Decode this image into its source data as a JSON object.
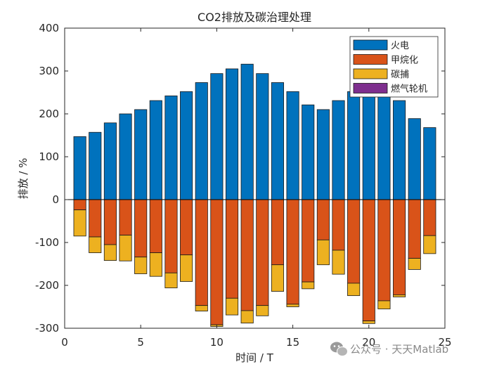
{
  "chart_data": {
    "type": "bar",
    "title": "CO2排放及碳治理处理",
    "xlabel": "时间 / T",
    "ylabel": "排放 / %",
    "xlim": [
      0,
      25
    ],
    "ylim": [
      -300,
      400
    ],
    "xticks": [
      0,
      5,
      10,
      15,
      20,
      25
    ],
    "yticks": [
      -300,
      -200,
      -100,
      0,
      100,
      200,
      300,
      400
    ],
    "x": [
      1,
      2,
      3,
      4,
      5,
      6,
      7,
      8,
      9,
      10,
      11,
      12,
      13,
      14,
      15,
      16,
      17,
      18,
      19,
      20,
      21,
      22,
      23,
      24
    ],
    "series": [
      {
        "name": "火电",
        "color": "#0072BD",
        "values": [
          147,
          157,
          179,
          200,
          210,
          231,
          242,
          252,
          273,
          294,
          305,
          316,
          294,
          273,
          252,
          221,
          210,
          231,
          252,
          252,
          242,
          231,
          189,
          168
        ]
      },
      {
        "name": "甲烷化",
        "color": "#D95319",
        "values": [
          -24,
          -87,
          -105,
          -83,
          -134,
          -124,
          -171,
          -129,
          -247,
          -292,
          -230,
          -259,
          -247,
          -152,
          -244,
          -192,
          -94,
          -118,
          -195,
          -283,
          -236,
          -222,
          -137,
          -84
        ]
      },
      {
        "name": "碳捕",
        "color": "#EDB120",
        "values": [
          -61,
          -37,
          -37,
          -60,
          -39,
          -55,
          -35,
          -62,
          -13,
          -4,
          -39,
          -29,
          -24,
          -62,
          -6,
          -16,
          -58,
          -56,
          -29,
          -6,
          -19,
          -5,
          -26,
          -42
        ]
      },
      {
        "name": "燃气轮机",
        "color": "#7E2F8E",
        "values": [
          0,
          0,
          0,
          0,
          0,
          0,
          0,
          0,
          0,
          0,
          0,
          0,
          0,
          0,
          0,
          0,
          0,
          0,
          0,
          0,
          0,
          0,
          0,
          0
        ]
      }
    ],
    "legend_position": "top-right",
    "grid": false
  },
  "watermark": {
    "text": "公众号 · 天天Matlab",
    "icon": "wechat-icon"
  }
}
